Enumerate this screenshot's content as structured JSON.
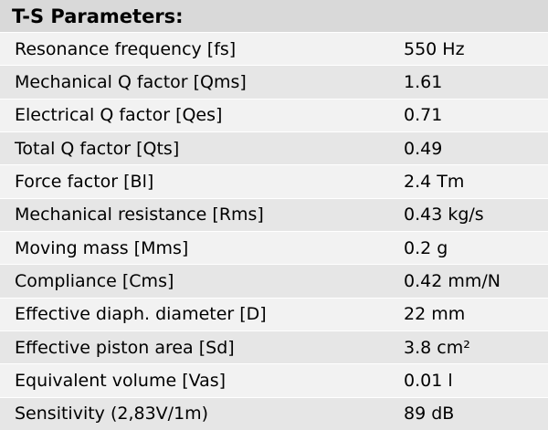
{
  "table": {
    "title": "T-S Parameters:",
    "rows": [
      {
        "label": "Resonance frequency [fs]",
        "value": "550 Hz"
      },
      {
        "label": "Mechanical Q factor [Qms]",
        "value": "1.61"
      },
      {
        "label": "Electrical Q factor [Qes]",
        "value": "0.71"
      },
      {
        "label": "Total Q factor [Qts]",
        "value": "0.49"
      },
      {
        "label": "Force factor [Bl]",
        "value": "2.4 Tm"
      },
      {
        "label": "Mechanical resistance [Rms]",
        "value": "0.43 kg/s"
      },
      {
        "label": "Moving mass [Mms]",
        "value": "0.2 g"
      },
      {
        "label": "Compliance [Cms]",
        "value": "0.42 mm/N"
      },
      {
        "label": "Effective diaph. diameter [D]",
        "value": "22 mm"
      },
      {
        "label": "Effective piston area [Sd]",
        "value": "3.8 cm²"
      },
      {
        "label": "Equivalent volume [Vas]",
        "value": "0.01 l"
      },
      {
        "label": "Sensitivity (2,83V/1m)",
        "value": "89 dB"
      }
    ]
  },
  "colors": {
    "header_bg": "#d9d9d9",
    "row_light": "#f2f2f2",
    "row_dark": "#e6e6e6"
  }
}
